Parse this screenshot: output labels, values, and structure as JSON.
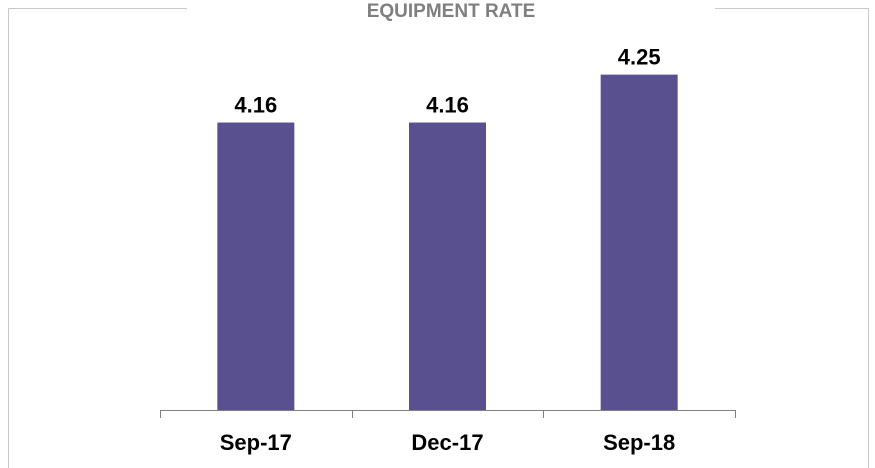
{
  "chart_data": {
    "type": "bar",
    "title": "EQUIPMENT RATE",
    "categories": [
      "Sep-17",
      "Dec-17",
      "Sep-18"
    ],
    "values": [
      4.16,
      4.16,
      4.25
    ],
    "color": "#58508f",
    "ylim": [
      3.62,
      4.3
    ]
  }
}
